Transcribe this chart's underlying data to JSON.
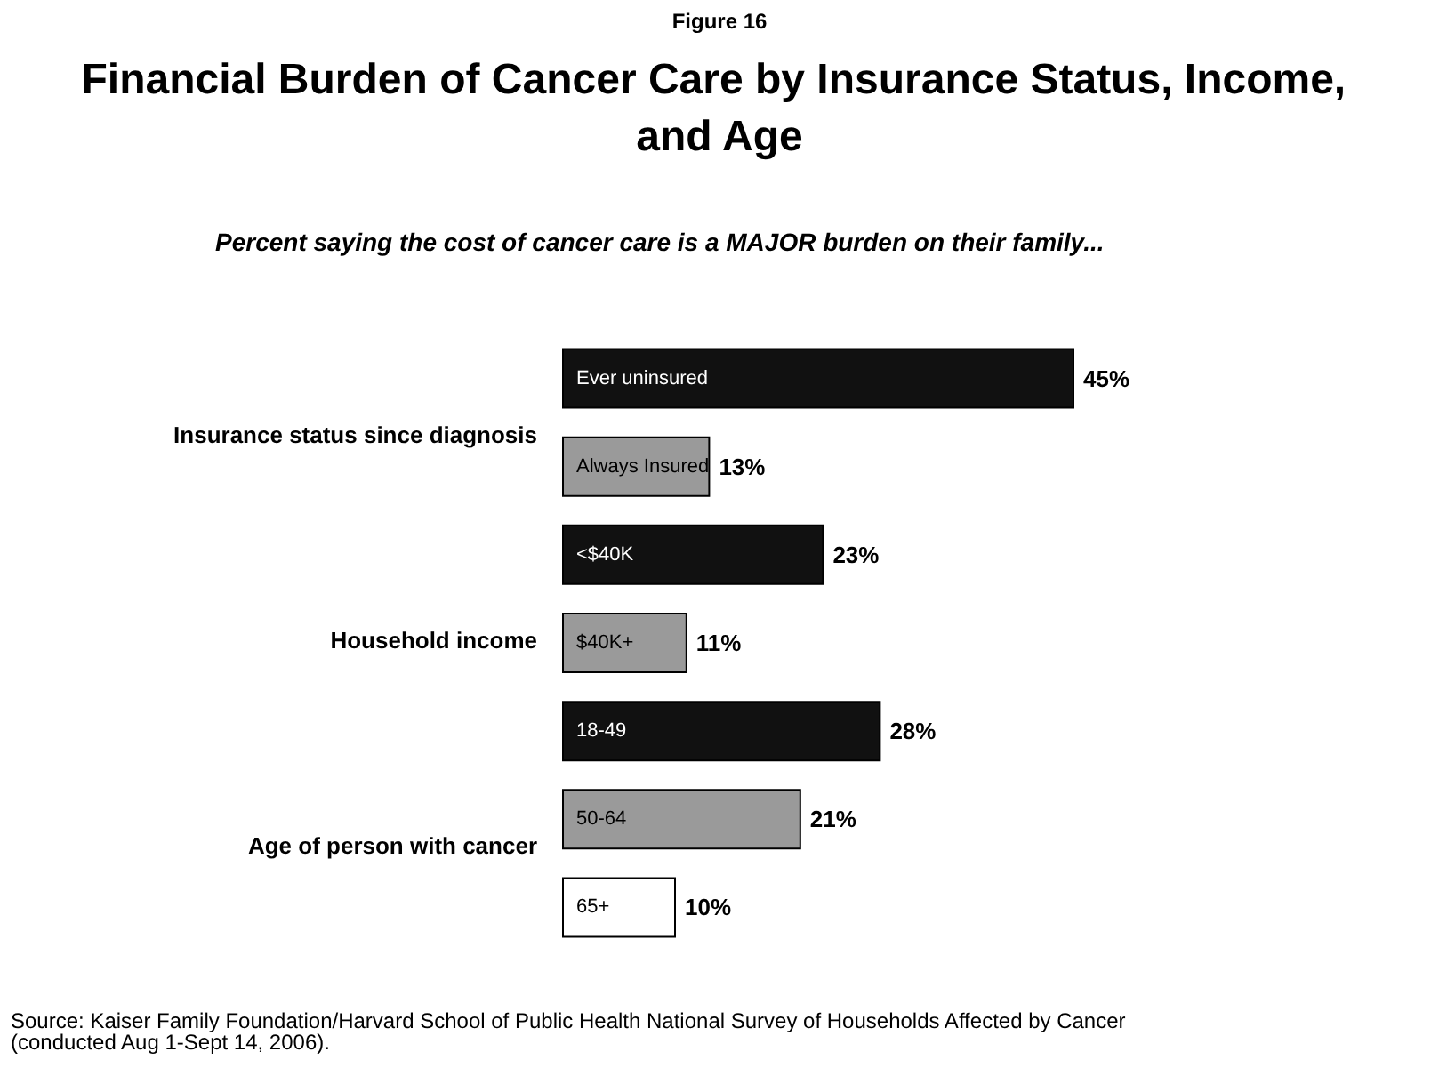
{
  "chart_data": {
    "type": "bar",
    "orientation": "horizontal",
    "title": "Financial Burden of Cancer Care by Insurance Status, Income, and Age",
    "subtitle": "Percent saying the cost of cancer care is a MAJOR burden on their family...",
    "categories": [
      "Ever uninsured",
      "Always Insured",
      "<$40K",
      "$40K+",
      "18-49",
      "50-64",
      "65+"
    ],
    "values": [
      45,
      13,
      23,
      11,
      28,
      21,
      10
    ],
    "colors": [
      "#111111",
      "#9a9a9a",
      "#111111",
      "#9a9a9a",
      "#111111",
      "#9a9a9a",
      "#ffffff"
    ],
    "value_labels": [
      "45%",
      "13%",
      "23%",
      "11%",
      "28%",
      "21%",
      "10%"
    ],
    "annotations": [
      "Figure 16",
      "Insurance status since diagnosis",
      "Household income",
      "Age of person with cancer",
      "Source: Kaiser Family Foundation/Harvard School of Public Health National Survey of Households Affected by Cancer (conducted Aug 1-Sept 14, 2006)."
    ]
  }
}
